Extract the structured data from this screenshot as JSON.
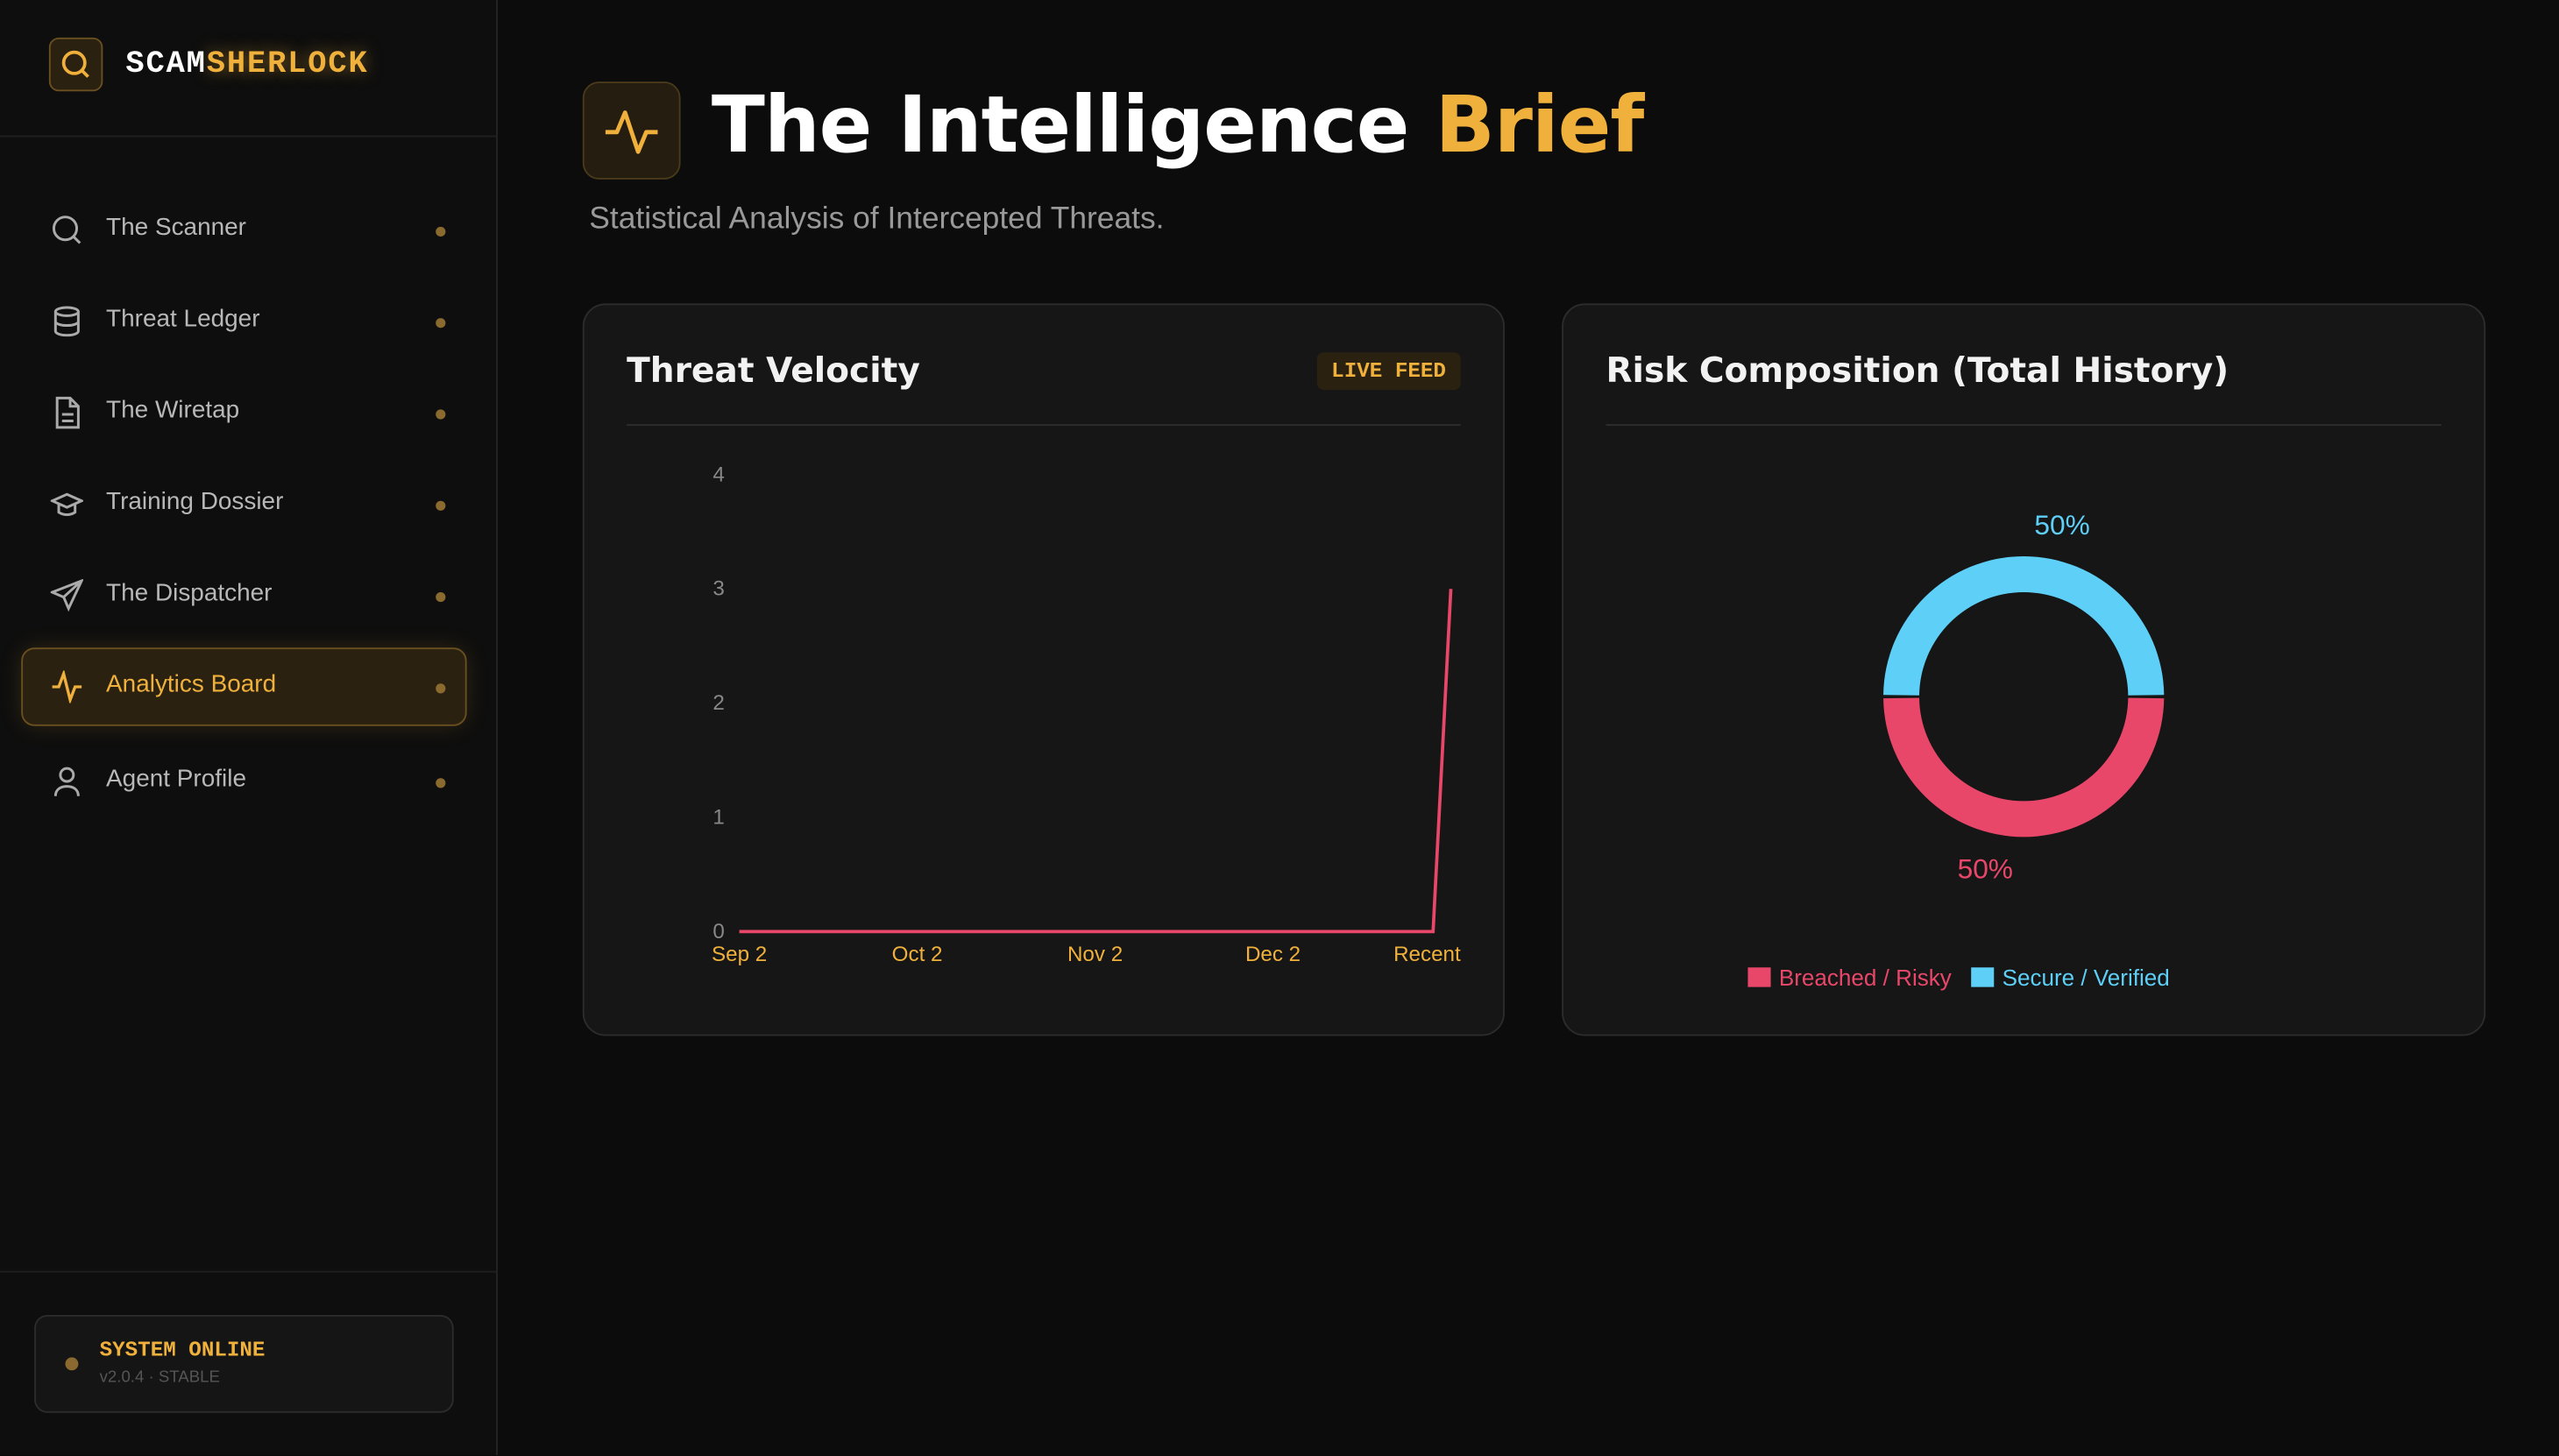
{
  "brand": {
    "prefix": "SCAM",
    "accent": "SHERLOCK"
  },
  "nav": [
    "The Scanner",
    "Threat Ledger",
    "The Wiretap",
    "Training Dossier",
    "The Dispatcher",
    "Analytics Board",
    "Agent Profile"
  ],
  "status": {
    "title": "SYSTEM ONLINE",
    "version": "v2.0.4 · STABLE"
  },
  "header": {
    "title": "The Intelligence",
    "accent": "Brief",
    "subtitle": "Statistical Analysis of Intercepted Threats."
  },
  "badge": "LIVE FEED",
  "chart_data": [
    {
      "type": "line",
      "title": "Threat Velocity",
      "color": "#e8476a",
      "categories": [
        "Sep 2",
        null,
        null,
        null,
        null,
        null,
        null,
        null,
        null,
        null,
        "Oct 2",
        null,
        null,
        null,
        null,
        null,
        null,
        null,
        null,
        null,
        "Nov 2",
        null,
        null,
        null,
        null,
        null,
        null,
        null,
        null,
        null,
        "Dec 2",
        null,
        null,
        null,
        null,
        null,
        null,
        null,
        null,
        null,
        "Recent"
      ],
      "values": [
        0,
        0,
        0,
        0,
        0,
        0,
        0,
        0,
        0,
        0,
        0,
        0,
        0,
        0,
        0,
        0,
        0,
        0,
        0,
        0,
        0,
        0,
        0,
        0,
        0,
        0,
        0,
        0,
        0,
        0,
        0,
        0,
        0,
        0,
        0,
        0,
        0,
        0,
        0,
        0,
        3
      ],
      "ylim": [
        0,
        4
      ],
      "yticks": [
        0,
        1,
        2,
        3,
        4
      ],
      "grid": false
    },
    {
      "type": "donut",
      "title": "Risk Composition (Total History)",
      "categories": [
        "Breached / Risky",
        "Secure / Verified"
      ],
      "values": [
        50,
        50
      ],
      "value_labels": [
        "50%",
        "50%"
      ],
      "colors": [
        "#e8476a",
        "#5ecff7"
      ],
      "legend": "bottom"
    }
  ]
}
